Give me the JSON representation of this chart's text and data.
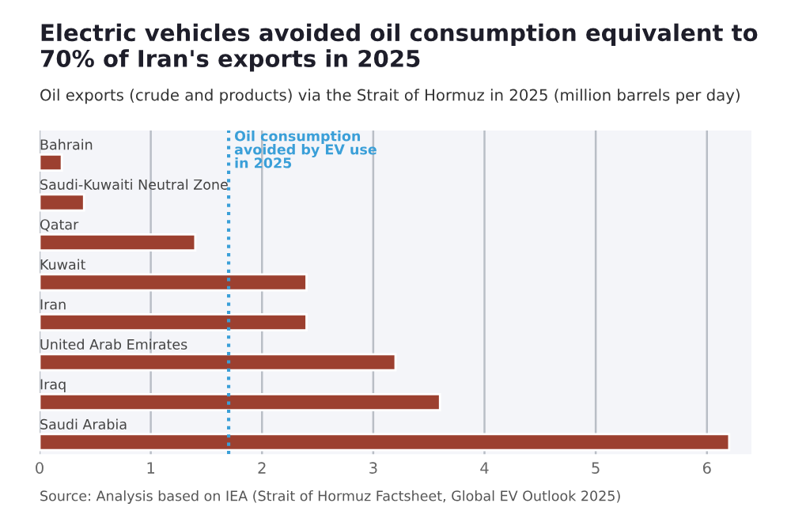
{
  "chart_data": {
    "type": "bar",
    "orientation": "horizontal",
    "title": "Electric vehicles avoided oil consumption equivalent to 70% of Iran's exports in 2025",
    "subtitle": "Oil exports (crude and products) via the Strait of Hormuz in 2025 (million barrels per day)",
    "categories": [
      "Bahrain",
      "Saudi-Kuwaiti Neutral Zone",
      "Qatar",
      "Kuwait",
      "Iran",
      "United Arab Emirates",
      "Iraq",
      "Saudi Arabia"
    ],
    "values": [
      0.2,
      0.4,
      1.4,
      2.4,
      2.4,
      3.2,
      3.6,
      6.2
    ],
    "color": "#9c4030",
    "xlim": [
      0,
      6.4
    ],
    "xticks": [
      0,
      1,
      2,
      3,
      4,
      5,
      6
    ],
    "grid": "x",
    "ref_lines": [
      {
        "axis": "x",
        "value": 1.7,
        "label": "Oil consumption\navoided by EV use\nin 2025",
        "color": "#3a9fd8",
        "line_style": "dotted"
      }
    ],
    "annotations": [
      "Source: Analysis based on IEA (Strait of Hormuz Factsheet, Global EV Outlook 2025)"
    ]
  }
}
